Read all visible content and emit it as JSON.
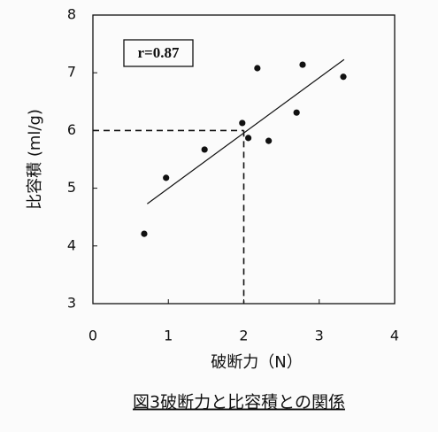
{
  "chart_data": {
    "type": "scatter",
    "title": "図3破断力と比容積との関係",
    "x_label": "破断力（N）",
    "y_label": "比容積 (ml/g)",
    "annotation": "r=0.87",
    "x": [
      0.68,
      0.97,
      1.48,
      1.98,
      2.06,
      2.18,
      2.33,
      2.7,
      2.78,
      3.32
    ],
    "values": [
      4.21,
      5.18,
      5.67,
      6.13,
      5.87,
      7.08,
      5.82,
      6.31,
      7.14,
      6.93
    ],
    "color": "#111111",
    "fit_line": {
      "x": [
        0.72,
        3.33
      ],
      "y": [
        4.73,
        7.23
      ]
    },
    "reference": {
      "x": 2,
      "y": 6
    },
    "xlim": [
      0,
      4
    ],
    "xticks": [
      0,
      1,
      2,
      3,
      4
    ],
    "ylim": [
      3,
      8
    ],
    "yticks": [
      3,
      4,
      5,
      6,
      7,
      8
    ]
  }
}
